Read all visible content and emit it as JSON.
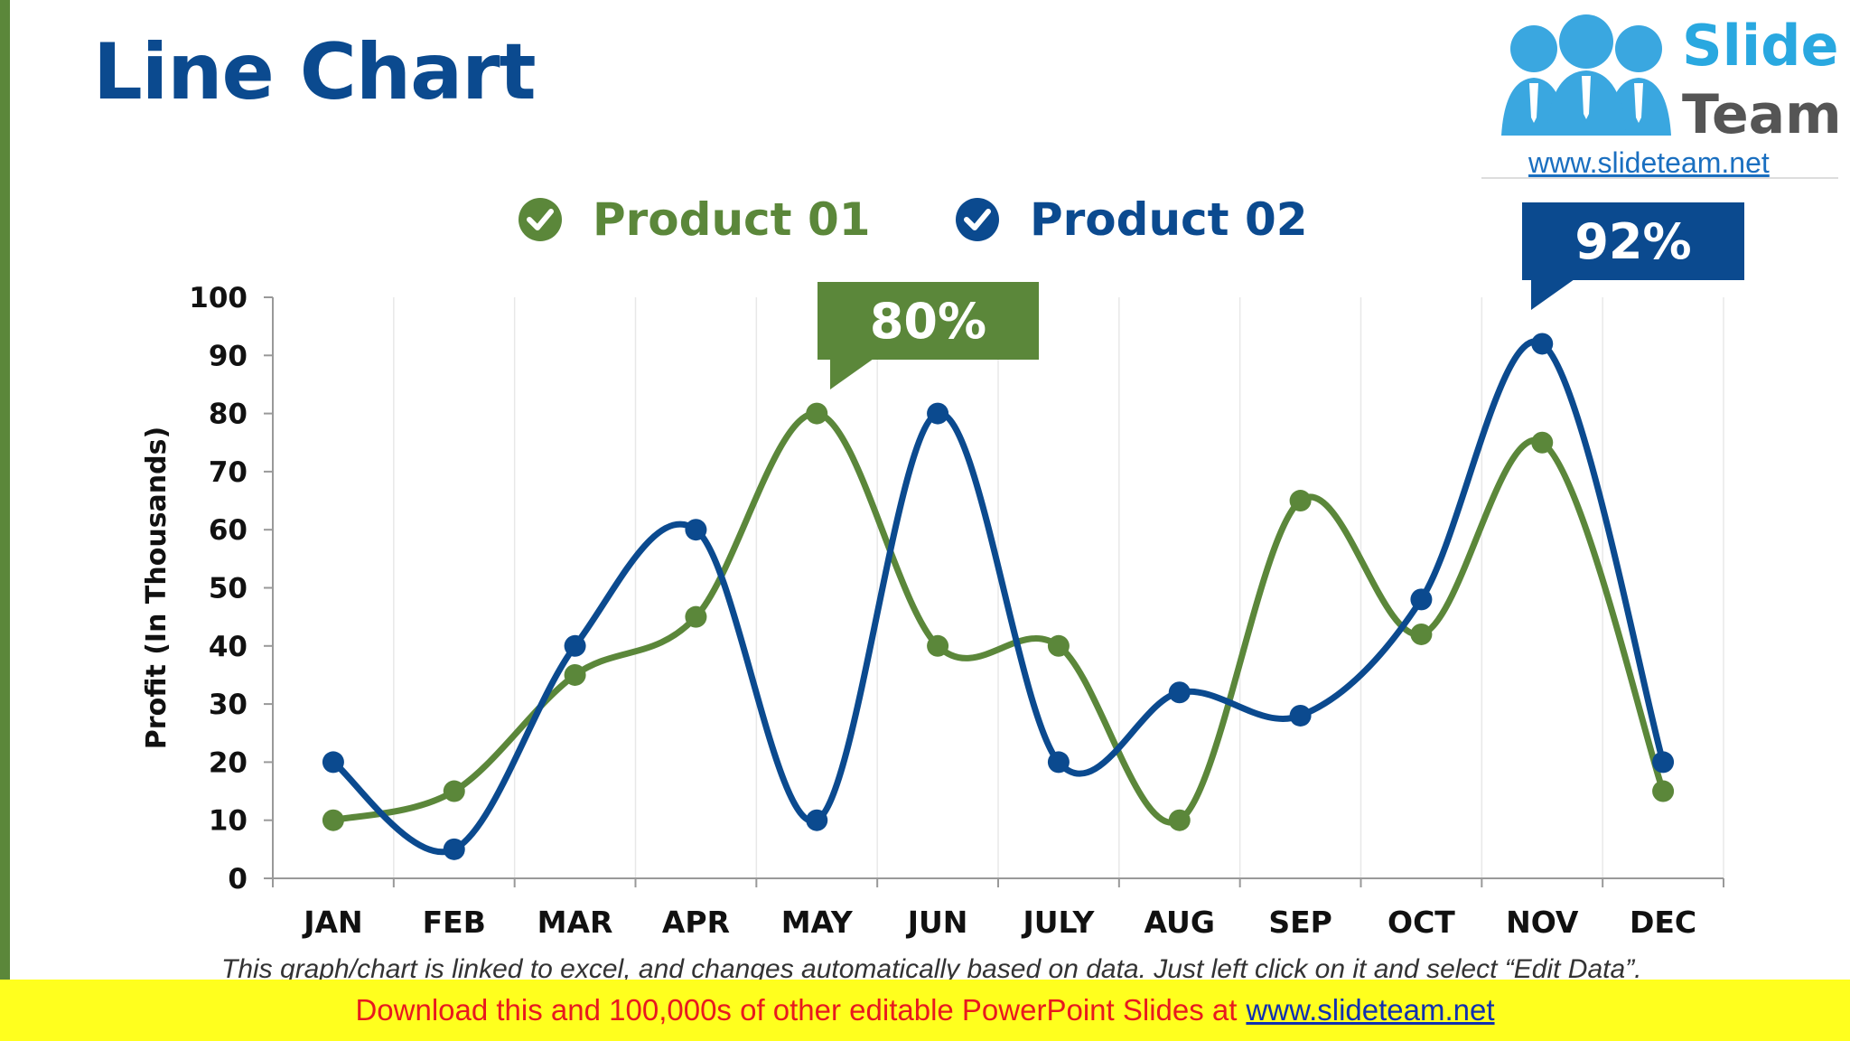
{
  "page": {
    "title": "Line Chart"
  },
  "logo": {
    "brand_line1": "Slide",
    "brand_line2": "Team",
    "url": "www.slideteam.net"
  },
  "legend": [
    {
      "label": "Product 01",
      "color": "#5b873a",
      "icon": "check-circle-icon"
    },
    {
      "label": "Product 02",
      "color": "#0b4a8f",
      "icon": "check-circle-icon"
    }
  ],
  "callouts": [
    {
      "text": "80%",
      "color": "#5b873a"
    },
    {
      "text": "92%",
      "color": "#0b4a8f"
    }
  ],
  "chart_data": {
    "type": "line",
    "categories": [
      "JAN",
      "FEB",
      "MAR",
      "APR",
      "MAY",
      "JUN",
      "JULY",
      "AUG",
      "SEP",
      "OCT",
      "NOV",
      "DEC"
    ],
    "series": [
      {
        "name": "Product 01",
        "color": "#5b873a",
        "values": [
          10,
          15,
          35,
          45,
          80,
          40,
          40,
          10,
          65,
          42,
          75,
          15
        ]
      },
      {
        "name": "Product 02",
        "color": "#0b4a8f",
        "values": [
          20,
          5,
          40,
          60,
          10,
          80,
          20,
          32,
          28,
          48,
          92,
          20
        ]
      }
    ],
    "title": "Line Chart",
    "xlabel": "",
    "ylabel": "Profit (In Thousands)",
    "ylim": [
      0,
      100
    ],
    "yticks": [
      0,
      10,
      20,
      30,
      40,
      50,
      60,
      70,
      80,
      90,
      100
    ],
    "grid": "vertical",
    "smooth": true
  },
  "footer": {
    "note": "This graph/chart is linked to excel, and changes automatically based on data. Just left click on it and select “Edit Data”.",
    "banner_text": "Download this and 100,000s of other editable PowerPoint Slides at",
    "banner_link": "www.slideteam.net"
  }
}
